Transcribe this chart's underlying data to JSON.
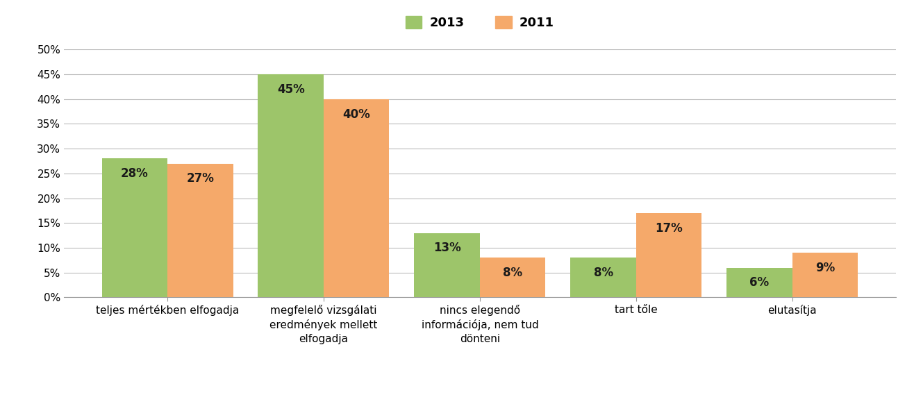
{
  "categories": [
    "teljes mértékben elfogadja",
    "megfelelő vizsgálati\neredmények mellett\nelfogadja",
    "nincs elegendő\ninformációja, nem tud\ndönteni",
    "tart tőle",
    "elutasítja"
  ],
  "values_2013": [
    28,
    45,
    13,
    8,
    6
  ],
  "values_2011": [
    27,
    40,
    8,
    17,
    9
  ],
  "color_2013": "#9DC56A",
  "color_2011": "#F5A96A",
  "legend_2013": "2013",
  "legend_2011": "2011",
  "ylim": [
    0,
    50
  ],
  "yticks": [
    0,
    5,
    10,
    15,
    20,
    25,
    30,
    35,
    40,
    45,
    50
  ],
  "ytick_labels": [
    "0%",
    "5%",
    "10%",
    "15%",
    "20%",
    "25%",
    "30%",
    "35%",
    "40%",
    "45%",
    "50%"
  ],
  "bar_width": 0.42,
  "label_fontsize": 12,
  "tick_fontsize": 11,
  "legend_fontsize": 13,
  "background_color": "#ffffff",
  "grid_color": "#bbbbbb",
  "label_color": "#1a1a1a"
}
